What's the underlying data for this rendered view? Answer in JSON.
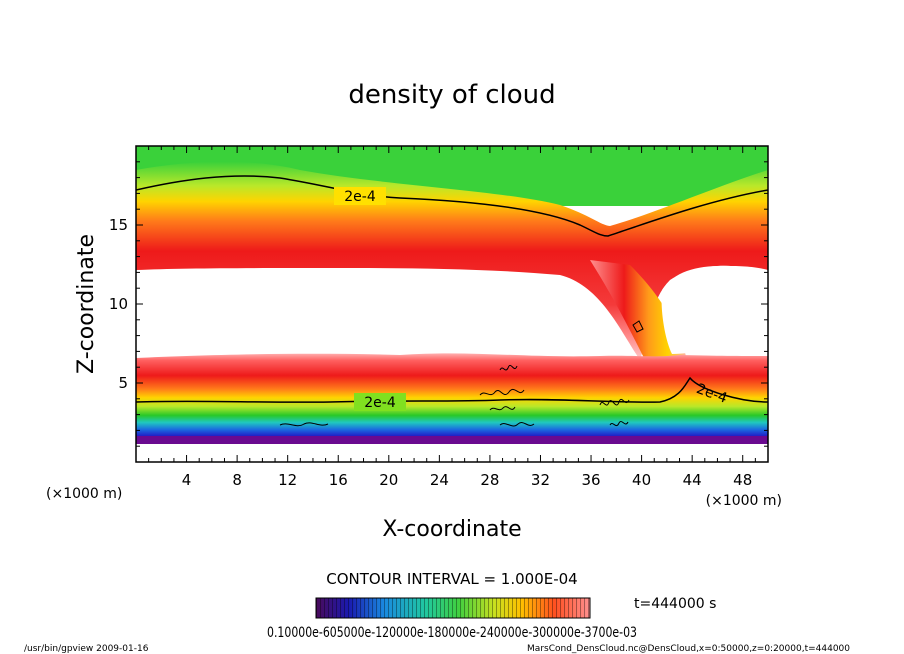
{
  "chart_data": {
    "type": "heatmap",
    "title": "density of cloud",
    "xlabel": "X-coordinate",
    "ylabel": "Z-coordinate",
    "x_unit": "(×1000 m)",
    "y_unit": "(×1000 m)",
    "xlim": [
      0,
      50
    ],
    "ylim": [
      0,
      20
    ],
    "xticks": [
      4,
      8,
      12,
      16,
      20,
      24,
      28,
      32,
      36,
      40,
      44,
      48
    ],
    "yticks": [
      5,
      10,
      15
    ],
    "contour_labels": [
      "2e-4",
      "2e-4",
      "2e-4"
    ],
    "contour_interval_text": "CONTOUR INTERVAL = 1.000E-04",
    "time_text": "t=444000 s",
    "colorbar_text": "0.10000e-605000e-120000e-180000e-240000e-300000e-3700e-03",
    "footer_left": "/usr/bin/gpview   2009-01-16",
    "footer_right": "MarsCond_DensCloud.nc@DensCloud,x=0:50000,z=0:20000,t=444000"
  }
}
